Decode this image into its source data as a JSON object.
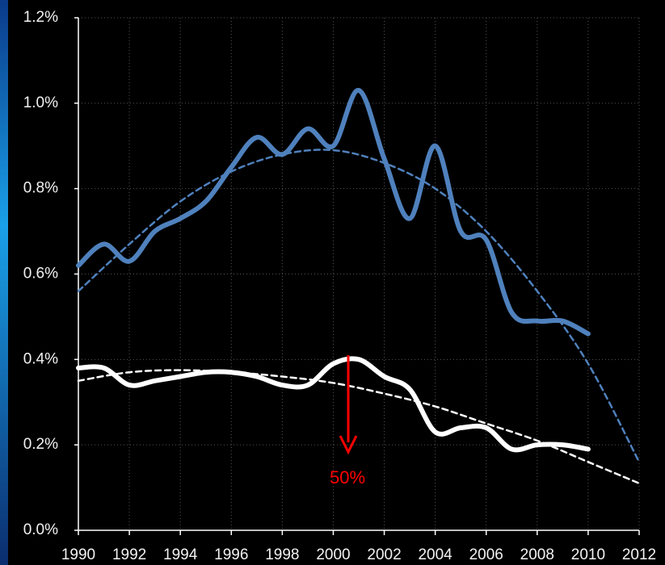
{
  "chart_data": {
    "type": "line",
    "ylim": [
      0,
      1.2
    ],
    "yticks": [
      {
        "value": 0,
        "label": "0.0%"
      },
      {
        "value": 0.2,
        "label": "0.2%"
      },
      {
        "value": 0.4,
        "label": "0.4%"
      },
      {
        "value": 0.6,
        "label": "0.6%"
      },
      {
        "value": 0.8,
        "label": "0.8%"
      },
      {
        "value": 1.0,
        "label": "1.0%"
      },
      {
        "value": 1.2,
        "label": "1.2%"
      }
    ],
    "xlim": [
      1990,
      2012
    ],
    "xticks": [
      1990,
      1992,
      1994,
      1996,
      1998,
      2000,
      2002,
      2004,
      2006,
      2008,
      2010,
      2012
    ],
    "grid": true,
    "series": [
      {
        "color": "#4f81bd",
        "dashed": false,
        "x": [
          1990,
          1991,
          1992,
          1993,
          1994,
          1995,
          1996,
          1997,
          1998,
          1999,
          2000,
          2001,
          2002,
          2003,
          2004,
          2005,
          2006,
          2007,
          2008,
          2009,
          2010
        ],
        "values": [
          0.62,
          0.67,
          0.63,
          0.7,
          0.73,
          0.77,
          0.85,
          0.92,
          0.88,
          0.94,
          0.9,
          1.03,
          0.87,
          0.73,
          0.9,
          0.7,
          0.68,
          0.51,
          0.49,
          0.49,
          0.46
        ]
      },
      {
        "color": "#4f81bd",
        "dashed": true,
        "x": [
          1990,
          1992,
          1994,
          1996,
          1998,
          2000,
          2002,
          2004,
          2006,
          2008,
          2010,
          2012
        ],
        "values": [
          0.56,
          0.67,
          0.77,
          0.84,
          0.88,
          0.89,
          0.86,
          0.8,
          0.7,
          0.56,
          0.39,
          0.16
        ]
      },
      {
        "color": "#ffffff",
        "dashed": false,
        "x": [
          1990,
          1991,
          1992,
          1993,
          1994,
          1995,
          1996,
          1997,
          1998,
          1999,
          2000,
          2001,
          2002,
          2003,
          2004,
          2005,
          2006,
          2007,
          2008,
          2009,
          2010
        ],
        "values": [
          0.38,
          0.38,
          0.34,
          0.35,
          0.36,
          0.37,
          0.37,
          0.36,
          0.34,
          0.34,
          0.39,
          0.4,
          0.36,
          0.33,
          0.23,
          0.24,
          0.24,
          0.19,
          0.2,
          0.2,
          0.19
        ]
      },
      {
        "color": "#ffffff",
        "dashed": true,
        "x": [
          1990,
          1992,
          1994,
          1996,
          1998,
          2000,
          2002,
          2004,
          2006,
          2008,
          2010,
          2012
        ],
        "values": [
          0.35,
          0.37,
          0.375,
          0.37,
          0.36,
          0.345,
          0.32,
          0.29,
          0.25,
          0.21,
          0.16,
          0.11
        ]
      }
    ],
    "annotation": {
      "text": "50%",
      "color": "#ff0000"
    }
  }
}
